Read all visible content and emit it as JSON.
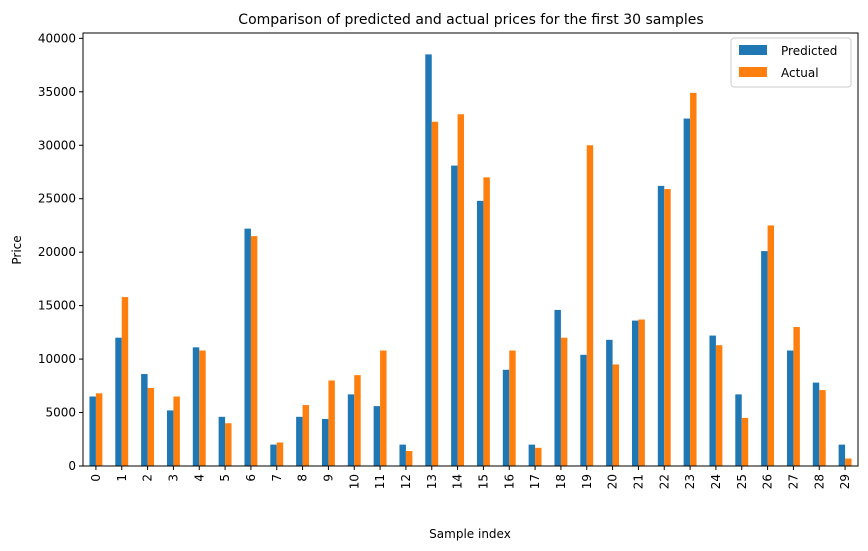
{
  "chart_data": {
    "type": "bar",
    "title": "Comparison of predicted and actual prices for the first 30 samples",
    "xlabel": "Sample index",
    "ylabel": "Price",
    "ylim": [
      0,
      40500
    ],
    "yticks": [
      "0",
      "5000",
      "10000",
      "15000",
      "20000",
      "25000",
      "30000",
      "35000",
      "40000"
    ],
    "categories": [
      "0",
      "1",
      "2",
      "3",
      "4",
      "5",
      "6",
      "7",
      "8",
      "9",
      "10",
      "11",
      "12",
      "13",
      "14",
      "15",
      "16",
      "17",
      "18",
      "19",
      "20",
      "21",
      "22",
      "23",
      "24",
      "25",
      "26",
      "27",
      "28",
      "29"
    ],
    "series": [
      {
        "name": "Predicted",
        "color": "#1f77b4",
        "values": [
          6500,
          12000,
          8600,
          5200,
          11100,
          4600,
          22200,
          2000,
          4600,
          4400,
          6700,
          5600,
          2000,
          38500,
          28100,
          24800,
          9000,
          2000,
          14600,
          10400,
          11800,
          13600,
          26200,
          32500,
          12200,
          6700,
          20100,
          10800,
          7800,
          2000
        ]
      },
      {
        "name": "Actual",
        "color": "#ff7f0e",
        "values": [
          6800,
          15800,
          7300,
          6500,
          10800,
          4000,
          21500,
          2200,
          5700,
          8000,
          8500,
          10800,
          1400,
          32200,
          32900,
          27000,
          10800,
          1700,
          12000,
          30000,
          9500,
          13700,
          25900,
          34900,
          11300,
          4500,
          22500,
          13000,
          7100,
          700
        ]
      }
    ],
    "legend_position": "top-right",
    "grid": false
  }
}
